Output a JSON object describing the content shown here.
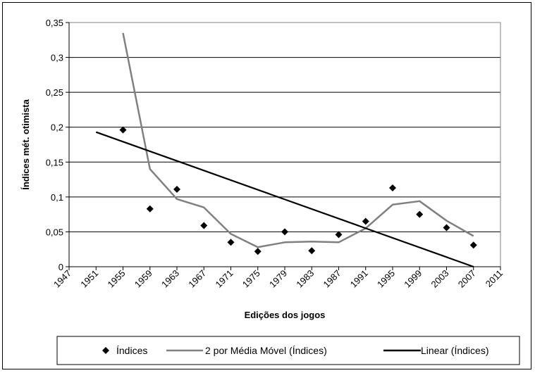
{
  "chart_data": {
    "type": "scatter",
    "xlabel": "Edições dos jogos",
    "ylabel": "Índices mét. otimista",
    "xlim": [
      1947,
      2011
    ],
    "ylim": [
      0,
      0.35
    ],
    "x_ticks": [
      "1947",
      "1951",
      "1955",
      "1959",
      "1963",
      "1967",
      "1971",
      "1975",
      "1979",
      "1983",
      "1987",
      "1991",
      "1995",
      "1999",
      "2003",
      "2007",
      "2011"
    ],
    "y_ticks": [
      "0",
      "0,05",
      "0,1",
      "0,15",
      "0,2",
      "0,25",
      "0,3",
      "0,35"
    ],
    "grid": "horizontal",
    "legend_position": "bottom",
    "series": [
      {
        "name": "Índices",
        "kind": "markers",
        "marker": "diamond",
        "color": "#000000",
        "x": [
          1955,
          1959,
          1963,
          1967,
          1971,
          1975,
          1979,
          1983,
          1987,
          1991,
          1995,
          1999,
          2003,
          2007
        ],
        "y": [
          0.196,
          0.083,
          0.111,
          0.059,
          0.035,
          0.022,
          0.05,
          0.023,
          0.046,
          0.065,
          0.113,
          0.075,
          0.056,
          0.031
        ]
      },
      {
        "name": "2 por Média Móvel (Índices)",
        "kind": "line",
        "color": "#808080",
        "x": [
          1955,
          1959,
          1963,
          1967,
          1971,
          1975,
          1979,
          1983,
          1987,
          1991,
          1995,
          1999,
          2003,
          2007
        ],
        "y": [
          0.335,
          0.14,
          0.097,
          0.085,
          0.047,
          0.028,
          0.035,
          0.036,
          0.035,
          0.055,
          0.089,
          0.094,
          0.066,
          0.044
        ]
      },
      {
        "name": "Linear (Índices)",
        "kind": "line",
        "color": "#000000",
        "x": [
          1951,
          2007
        ],
        "y": [
          0.193,
          0.0
        ]
      }
    ]
  }
}
